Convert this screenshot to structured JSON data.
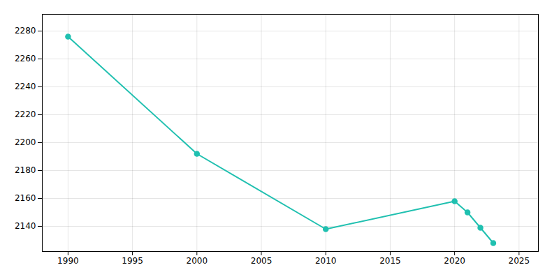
{
  "chart_data": {
    "type": "line",
    "x": [
      1990,
      2000,
      2010,
      2020,
      2021,
      2022,
      2023
    ],
    "values": [
      2276,
      2192,
      2138,
      2158,
      2150,
      2139,
      2128
    ],
    "color": "#20c0b0",
    "marker": "circle",
    "xlim": [
      1988,
      2026.5
    ],
    "ylim": [
      2122,
      2292
    ],
    "xticks": [
      1990,
      1995,
      2000,
      2005,
      2010,
      2015,
      2020,
      2025
    ],
    "yticks": [
      2140,
      2160,
      2180,
      2200,
      2220,
      2240,
      2260,
      2280
    ],
    "grid": true
  }
}
